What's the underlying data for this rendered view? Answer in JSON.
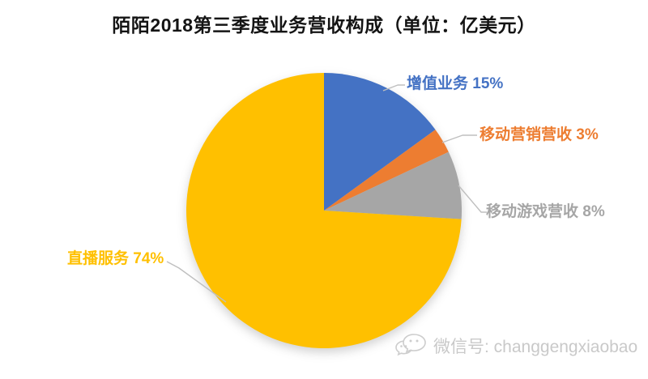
{
  "title": "陌陌2018第三季度业务营收构成（单位：亿美元）",
  "chart_data": {
    "type": "pie",
    "title": "陌陌2018第三季度业务营收构成（单位：亿美元）",
    "unit": "亿美元",
    "values_are": "percent_share",
    "start_angle_deg": 0,
    "direction": "clockwise",
    "legend": "none",
    "labels_position": "outside-with-leader-lines",
    "slices": [
      {
        "name": "增值业务",
        "value": 15,
        "label": "增值业务 15%",
        "color": "#4472C4"
      },
      {
        "name": "移动营销营收",
        "value": 3,
        "label": "移动营销营收 3%",
        "color": "#ED7D31"
      },
      {
        "name": "移动游戏营收",
        "value": 8,
        "label": "移动游戏营收 8%",
        "color": "#A6A6A6"
      },
      {
        "name": "直播服务",
        "value": 74,
        "label": "直播服务 74%",
        "color": "#FFC000"
      }
    ],
    "leader_line_color": "#BFBFBF",
    "background_color": "#FFFFFF",
    "title_color": "#141414"
  },
  "watermark": {
    "icon": "wechat-icon",
    "text": "微信号: changgengxiaobao",
    "color": "#C9C9C9"
  }
}
